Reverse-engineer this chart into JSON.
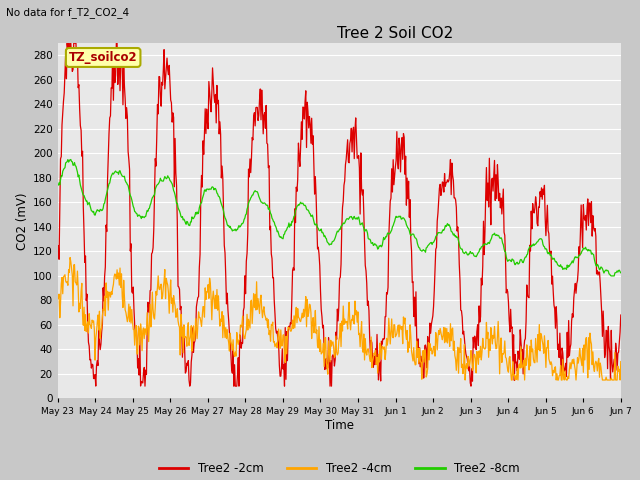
{
  "title": "Tree 2 Soil CO2",
  "subtitle": "No data for f_T2_CO2_4",
  "ylabel": "CO2 (mV)",
  "xlabel": "Time",
  "annotation": "TZ_soilco2",
  "ylim": [
    0,
    290
  ],
  "yticks": [
    0,
    20,
    40,
    60,
    80,
    100,
    120,
    140,
    160,
    180,
    200,
    220,
    240,
    260,
    280
  ],
  "colors": {
    "red": "#DD0000",
    "orange": "#FFA500",
    "green": "#22CC00"
  },
  "legend_labels": [
    "Tree2 -2cm",
    "Tree2 -4cm",
    "Tree2 -8cm"
  ],
  "fig_bg": "#C8C8C8",
  "plot_bg": "#E8E8E8",
  "tick_labels": [
    "May 23",
    "May 24",
    "May 25",
    "May 26",
    "May 27",
    "May 28",
    "May 29",
    "May 30",
    "May 31",
    "Jun 1",
    "Jun 2",
    "Jun 3",
    "Jun 4",
    "Jun 5",
    "Jun 6",
    "Jun 7"
  ]
}
